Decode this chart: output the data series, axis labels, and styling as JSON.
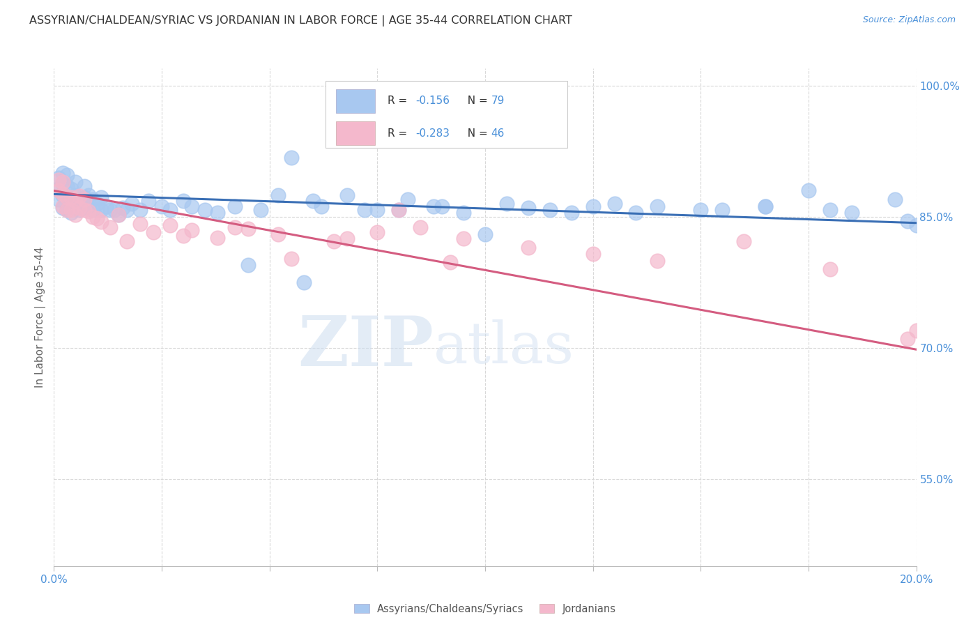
{
  "title": "ASSYRIAN/CHALDEAN/SYRIAC VS JORDANIAN IN LABOR FORCE | AGE 35-44 CORRELATION CHART",
  "source_text": "Source: ZipAtlas.com",
  "ylabel": "In Labor Force | Age 35-44",
  "xlim": [
    0.0,
    0.2
  ],
  "ylim": [
    0.45,
    1.02
  ],
  "xtick_positions": [
    0.0,
    0.025,
    0.05,
    0.075,
    0.1,
    0.125,
    0.15,
    0.175,
    0.2
  ],
  "yticks_right": [
    0.55,
    0.7,
    0.85,
    1.0
  ],
  "ytick_right_labels": [
    "55.0%",
    "70.0%",
    "85.0%",
    "100.0%"
  ],
  "blue_color": "#a8c8f0",
  "pink_color": "#f4b8cc",
  "blue_line_color": "#3a6fb5",
  "pink_line_color": "#d45c80",
  "blue_label": "Assyrians/Chaldeans/Syriacs",
  "pink_label": "Jordanians",
  "legend_text_color": "#3a6fb5",
  "watermark_zip": "ZIP",
  "watermark_atlas": "atlas",
  "blue_trend_x": [
    0.0,
    0.2
  ],
  "blue_trend_y": [
    0.876,
    0.843
  ],
  "pink_trend_x": [
    0.0,
    0.2
  ],
  "pink_trend_y": [
    0.88,
    0.698
  ],
  "background_color": "#ffffff",
  "grid_color": "#d8d8d8",
  "blue_scatter_x": [
    0.001,
    0.001,
    0.001,
    0.002,
    0.002,
    0.002,
    0.002,
    0.003,
    0.003,
    0.003,
    0.003,
    0.004,
    0.004,
    0.004,
    0.005,
    0.005,
    0.005,
    0.006,
    0.006,
    0.007,
    0.007,
    0.007,
    0.008,
    0.008,
    0.009,
    0.009,
    0.01,
    0.011,
    0.011,
    0.012,
    0.013,
    0.014,
    0.015,
    0.016,
    0.017,
    0.018,
    0.02,
    0.022,
    0.025,
    0.027,
    0.03,
    0.032,
    0.035,
    0.038,
    0.042,
    0.048,
    0.055,
    0.062,
    0.068,
    0.075,
    0.082,
    0.088,
    0.095,
    0.105,
    0.115,
    0.125,
    0.135,
    0.15,
    0.165,
    0.18,
    0.052,
    0.06,
    0.072,
    0.08,
    0.09,
    0.1,
    0.11,
    0.12,
    0.13,
    0.14,
    0.155,
    0.165,
    0.175,
    0.185,
    0.195,
    0.198,
    0.2,
    0.045,
    0.058
  ],
  "blue_scatter_y": [
    0.87,
    0.882,
    0.895,
    0.86,
    0.875,
    0.888,
    0.9,
    0.858,
    0.872,
    0.885,
    0.898,
    0.855,
    0.87,
    0.882,
    0.86,
    0.875,
    0.89,
    0.858,
    0.87,
    0.86,
    0.872,
    0.885,
    0.862,
    0.875,
    0.858,
    0.87,
    0.865,
    0.858,
    0.872,
    0.862,
    0.858,
    0.858,
    0.852,
    0.86,
    0.858,
    0.865,
    0.858,
    0.868,
    0.862,
    0.858,
    0.868,
    0.862,
    0.858,
    0.855,
    0.862,
    0.858,
    0.918,
    0.862,
    0.875,
    0.858,
    0.87,
    0.862,
    0.855,
    0.865,
    0.858,
    0.862,
    0.855,
    0.858,
    0.862,
    0.858,
    0.875,
    0.868,
    0.858,
    0.858,
    0.862,
    0.83,
    0.86,
    0.855,
    0.865,
    0.862,
    0.858,
    0.862,
    0.88,
    0.855,
    0.87,
    0.845,
    0.84,
    0.795,
    0.775
  ],
  "pink_scatter_x": [
    0.001,
    0.001,
    0.002,
    0.002,
    0.002,
    0.003,
    0.003,
    0.004,
    0.004,
    0.005,
    0.005,
    0.006,
    0.006,
    0.007,
    0.007,
    0.008,
    0.009,
    0.01,
    0.011,
    0.013,
    0.015,
    0.017,
    0.02,
    0.023,
    0.027,
    0.032,
    0.038,
    0.045,
    0.055,
    0.065,
    0.075,
    0.085,
    0.095,
    0.11,
    0.125,
    0.14,
    0.16,
    0.18,
    0.198,
    0.2,
    0.03,
    0.042,
    0.052,
    0.068,
    0.08,
    0.092
  ],
  "pink_scatter_y": [
    0.88,
    0.892,
    0.862,
    0.876,
    0.89,
    0.858,
    0.872,
    0.858,
    0.872,
    0.852,
    0.868,
    0.86,
    0.874,
    0.858,
    0.87,
    0.856,
    0.85,
    0.848,
    0.844,
    0.838,
    0.852,
    0.822,
    0.842,
    0.832,
    0.84,
    0.835,
    0.826,
    0.836,
    0.802,
    0.822,
    0.832,
    0.838,
    0.825,
    0.815,
    0.808,
    0.8,
    0.822,
    0.79,
    0.71,
    0.72,
    0.828,
    0.838,
    0.83,
    0.825,
    0.858,
    0.798
  ]
}
